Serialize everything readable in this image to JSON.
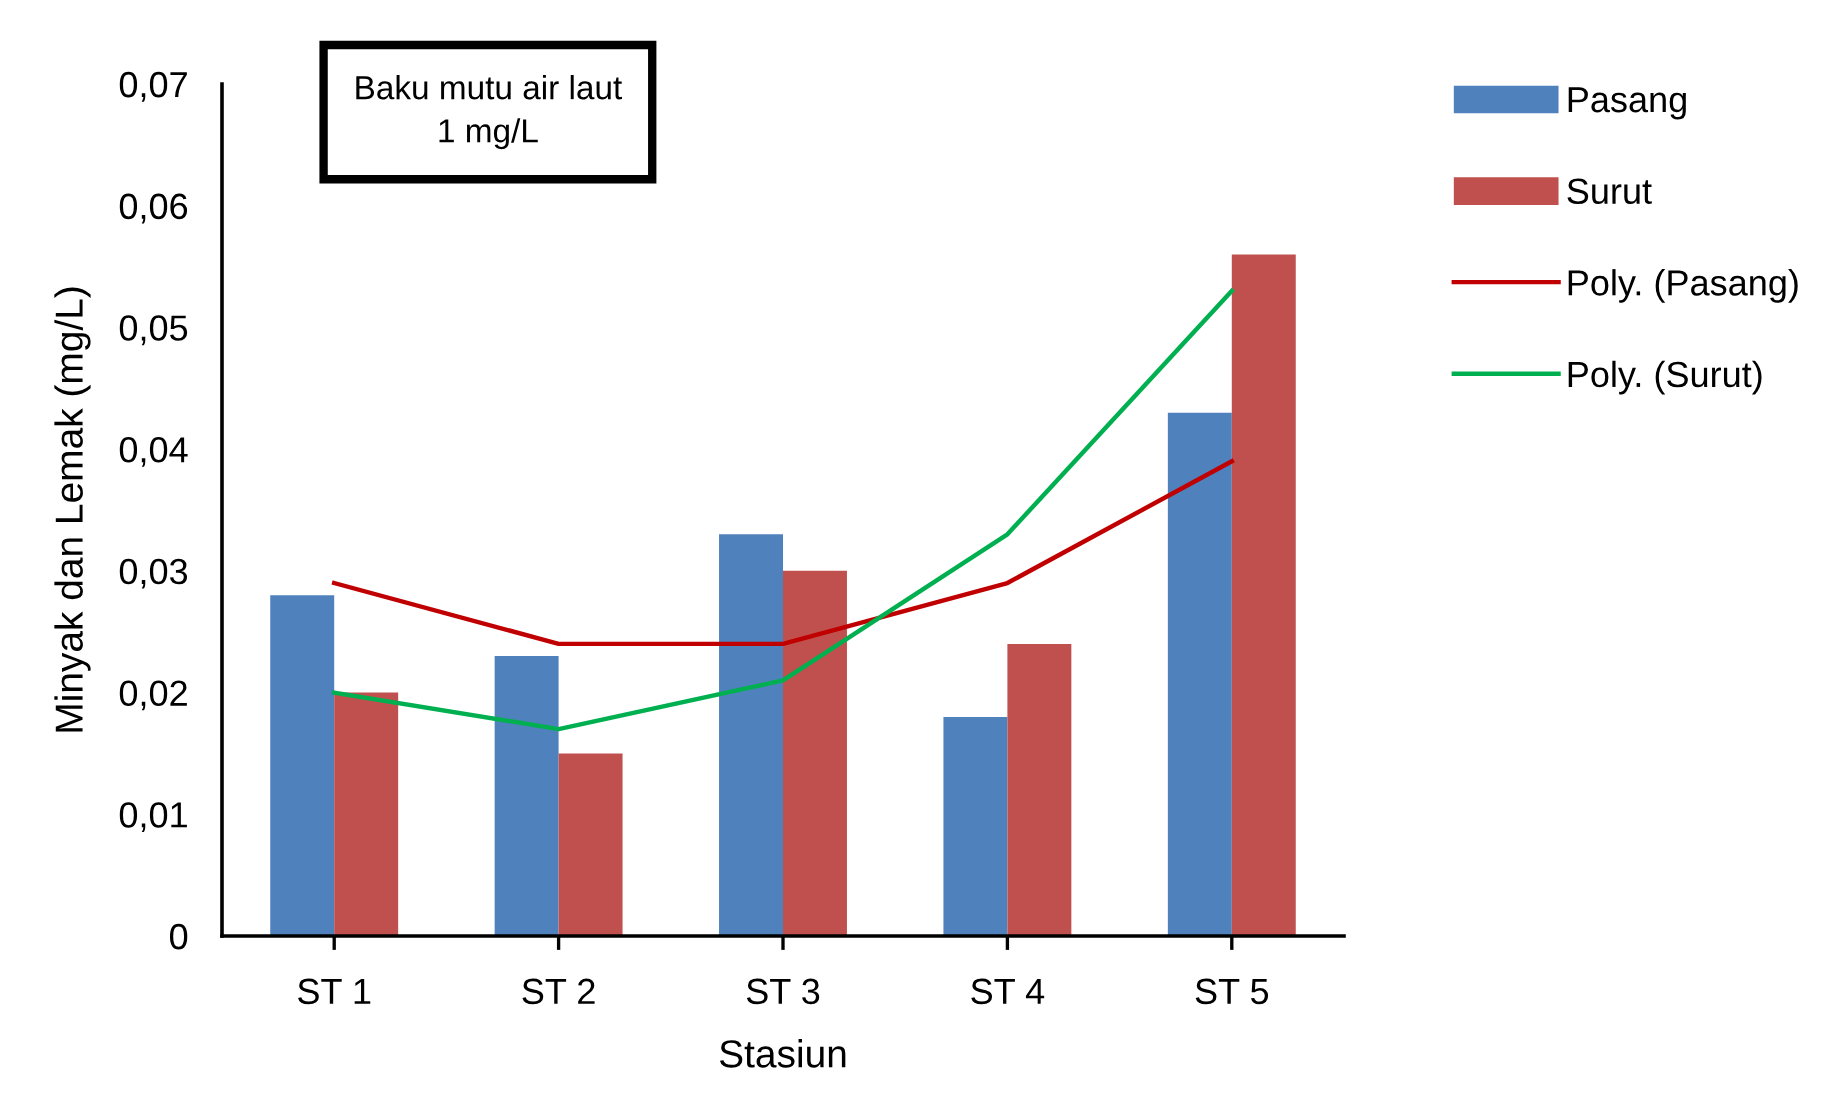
{
  "chart_data": {
    "type": "bar",
    "xlabel": "Stasiun",
    "ylabel": "Minyak dan Lemak (mg/L)",
    "categories": [
      "ST 1",
      "ST 2",
      "ST 3",
      "ST 4",
      "ST 5"
    ],
    "series": [
      {
        "name": "Pasang",
        "color": "#4f81bd",
        "values": [
          0.028,
          0.023,
          0.033,
          0.018,
          0.043
        ]
      },
      {
        "name": "Surut",
        "color": "#c0504d",
        "values": [
          0.02,
          0.015,
          0.03,
          0.024,
          0.056
        ]
      },
      {
        "name": "Poly. (Pasang)",
        "type": "line",
        "color": "#c00000",
        "values": [
          0.029,
          0.024,
          0.024,
          0.029,
          0.039
        ]
      },
      {
        "name": "Poly. (Surut)",
        "type": "line",
        "color": "#00b050",
        "values": [
          0.02,
          0.017,
          0.021,
          0.033,
          0.053
        ]
      }
    ],
    "ylim": [
      0,
      0.07
    ],
    "yticks": [
      0,
      {
        "value": 0.01,
        "label": "0,01"
      },
      {
        "value": 0.02,
        "label": "0,02"
      },
      {
        "value": 0.03,
        "label": "0,03"
      },
      {
        "value": 0.04,
        "label": "0,04"
      },
      {
        "value": 0.05,
        "label": "0,05"
      },
      {
        "value": 0.06,
        "label": "0,06"
      },
      {
        "value": 0.07,
        "label": "0,07"
      }
    ],
    "annotations": [
      "Baku mutu air laut\n1 mg/L"
    ],
    "legend": "right",
    "grid": false
  }
}
